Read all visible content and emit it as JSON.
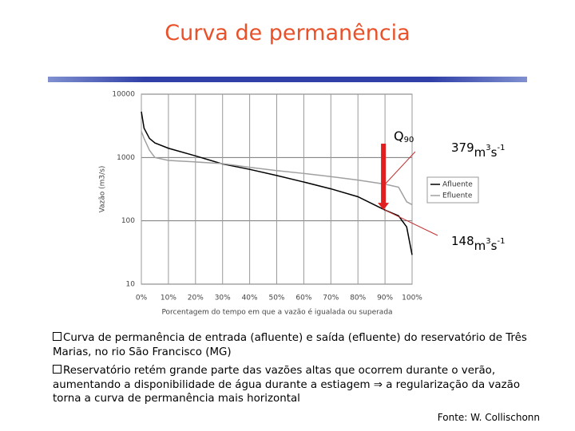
{
  "slide": {
    "title": "Curva de permanência",
    "bullets": [
      "Curva de permanência de entrada (afluente) e saída (efluente) do reservatório de Três Marias, no rio São Francisco (MG)",
      "Reservatório retém grande parte das vazões altas que ocorrem durante o verão, aumentando a disponibilidade de água durante a estiagem ⇒ a regularização da vazão torna a curva de permanência mais horizontal"
    ],
    "source": "Fonte: W. Collischonn"
  },
  "chart_data": {
    "type": "line",
    "x_label": "Porcentagem do tempo em que a vazão é igualada ou superada",
    "y_label": "Vazão (m3/s)",
    "log_y": true,
    "grid": true,
    "legend": "right",
    "xlim": [
      0,
      100
    ],
    "xticks": [
      {
        "value": 0,
        "label": "0%"
      },
      {
        "value": 10,
        "label": "10%"
      },
      {
        "value": 20,
        "label": "20%"
      },
      {
        "value": 30,
        "label": "30%"
      },
      {
        "value": 40,
        "label": "40%"
      },
      {
        "value": 50,
        "label": "50%"
      },
      {
        "value": 60,
        "label": "60%"
      },
      {
        "value": 70,
        "label": "70%"
      },
      {
        "value": 80,
        "label": "80%"
      },
      {
        "value": 90,
        "label": "90%"
      },
      {
        "value": 100,
        "label": "100%"
      }
    ],
    "ylim": [
      10,
      10000
    ],
    "yticks": [
      10,
      100,
      1000,
      10000
    ],
    "x": [
      0,
      1,
      3,
      5,
      10,
      20,
      30,
      40,
      50,
      60,
      70,
      80,
      90,
      95,
      98,
      100
    ],
    "series": [
      {
        "name": "Afluente",
        "color": "#000000",
        "values": [
          5300,
          2900,
          2000,
          1700,
          1400,
          1060,
          790,
          650,
          520,
          410,
          320,
          240,
          148,
          120,
          80,
          29
        ]
      },
      {
        "name": "Efluente",
        "color": "#a0a0a0",
        "values": [
          2600,
          2000,
          1300,
          1000,
          900,
          850,
          800,
          700,
          620,
          560,
          500,
          440,
          379,
          340,
          200,
          180
        ]
      }
    ],
    "annotation": {
      "q": "Q",
      "q_sub": "90",
      "q_x": 90,
      "upper": 379,
      "lower": 148,
      "unit": [
        "m",
        "3",
        "s",
        "-1"
      ]
    }
  }
}
